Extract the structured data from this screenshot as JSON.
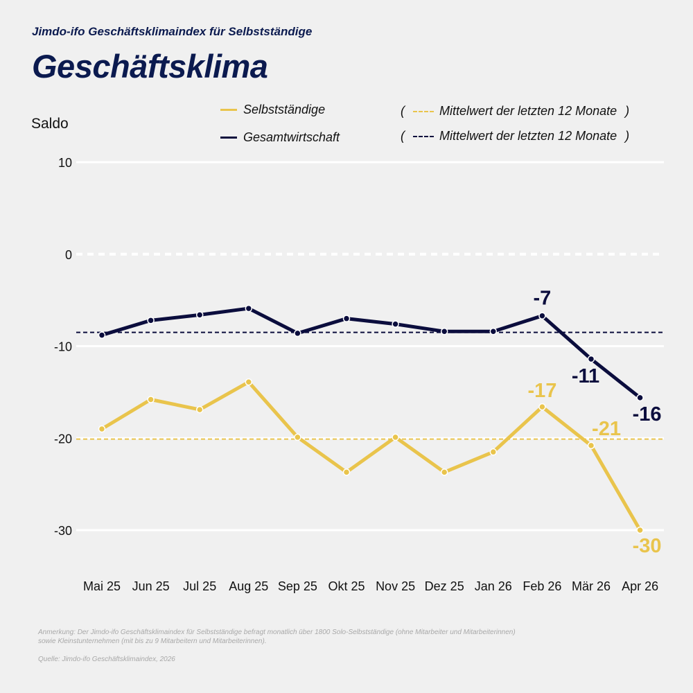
{
  "header": {
    "subtitle": "Jimdo-ifo Geschäftsklimaindex für Selbstständige",
    "title": "Geschäftsklima"
  },
  "legend": {
    "series1": "Selbstständige",
    "series2": "Gesamtwirtschaft",
    "mean1": "Mittelwert der letzten 12 Monate",
    "mean2": "Mittelwert der letzten 12 Monate",
    "paren_open": "(",
    "paren_close": ")"
  },
  "colors": {
    "selbststaendige": "#e9c44c",
    "gesamtwirtschaft": "#0b0d3d",
    "background": "#f0f0f0"
  },
  "footer": {
    "note": "Anmerkung: Der Jimdo-ifo Geschäftsklimaindex für Selbstständige befragt monatlich über 1800 Solo-Selbstständige (ohne Mitarbeiter und Mitarbeiterinnen) sowie Kleinstunternehmen (mit bis zu 9 Mitarbeitern und Mitarbeiterinnen).",
    "source": "Quelle: Jimdo-ifo Geschäftsklimaindex, 2026"
  },
  "chart_data": {
    "type": "line",
    "ylabel": "Saldo",
    "ylim": [
      -35,
      10
    ],
    "yticks": [
      10,
      0,
      -10,
      -20,
      -30
    ],
    "categories": [
      "Mai 25",
      "Jun 25",
      "Jul 25",
      "Aug 25",
      "Sep 25",
      "Okt 25",
      "Nov 25",
      "Dez 25",
      "Jan 26",
      "Feb 26",
      "Mär 26",
      "Apr 26"
    ],
    "series": [
      {
        "name": "Selbstständige",
        "key": "selbststaendige",
        "values": [
          -19.0,
          -15.8,
          -16.9,
          -13.9,
          -19.9,
          -23.7,
          -19.9,
          -23.7,
          -21.5,
          -16.6,
          -20.8,
          -30.0
        ],
        "mean": -20.1,
        "labels": [
          {
            "index": 9,
            "text": "-17"
          },
          {
            "index": 10,
            "text": "-21"
          },
          {
            "index": 11,
            "text": "-30"
          }
        ]
      },
      {
        "name": "Gesamtwirtschaft",
        "key": "gesamtwirtschaft",
        "values": [
          -8.8,
          -7.2,
          -6.6,
          -5.9,
          -8.6,
          -7.0,
          -7.6,
          -8.4,
          -8.4,
          -6.7,
          -11.4,
          -15.6
        ],
        "mean": -8.5,
        "labels": [
          {
            "index": 9,
            "text": "-7"
          },
          {
            "index": 10,
            "text": "-11"
          },
          {
            "index": 11,
            "text": "-16"
          }
        ]
      }
    ],
    "zero_line": "dashed",
    "grid": true
  }
}
